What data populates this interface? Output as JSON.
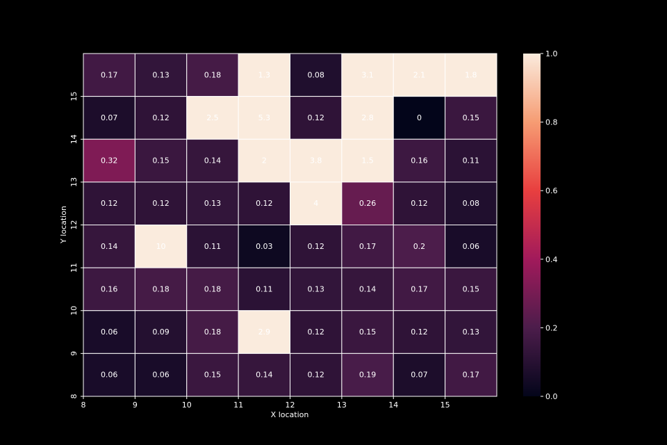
{
  "chart_data": {
    "type": "heatmap",
    "xlabel": "X location",
    "ylabel": "Y location",
    "x_ticks": [
      "8",
      "9",
      "10",
      "11",
      "12",
      "13",
      "14",
      "15"
    ],
    "y_ticks": [
      "8",
      "9",
      "10",
      "11",
      "12",
      "13",
      "14",
      "15"
    ],
    "rows": [
      {
        "values": [
          0.17,
          0.13,
          0.18,
          1.3,
          0.08,
          3.1,
          2.1,
          1.8
        ],
        "labels": [
          "0.17",
          "0.13",
          "0.18",
          "1.3",
          "0.08",
          "3.1",
          "2.1",
          "1.8"
        ]
      },
      {
        "values": [
          0.07,
          0.12,
          2.5,
          5.3,
          0.12,
          2.8,
          0,
          0.15
        ],
        "labels": [
          "0.07",
          "0.12",
          "2.5",
          "5.3",
          "0.12",
          "2.8",
          "0",
          "0.15"
        ]
      },
      {
        "values": [
          0.32,
          0.15,
          0.14,
          2,
          3.8,
          1.5,
          0.16,
          0.11
        ],
        "labels": [
          "0.32",
          "0.15",
          "0.14",
          "2",
          "3.8",
          "1.5",
          "0.16",
          "0.11"
        ]
      },
      {
        "values": [
          0.12,
          0.12,
          0.13,
          0.12,
          4,
          0.26,
          0.12,
          0.08
        ],
        "labels": [
          "0.12",
          "0.12",
          "0.13",
          "0.12",
          "4",
          "0.26",
          "0.12",
          "0.08"
        ]
      },
      {
        "values": [
          0.14,
          10,
          0.11,
          0.03,
          0.12,
          0.17,
          0.2,
          0.06
        ],
        "labels": [
          "0.14",
          "10",
          "0.11",
          "0.03",
          "0.12",
          "0.17",
          "0.2",
          "0.06"
        ]
      },
      {
        "values": [
          0.16,
          0.18,
          0.18,
          0.11,
          0.13,
          0.14,
          0.17,
          0.15
        ],
        "labels": [
          "0.16",
          "0.18",
          "0.18",
          "0.11",
          "0.13",
          "0.14",
          "0.17",
          "0.15"
        ]
      },
      {
        "values": [
          0.06,
          0.09,
          0.18,
          2.9,
          0.12,
          0.15,
          0.12,
          0.13
        ],
        "labels": [
          "0.06",
          "0.09",
          "0.18",
          "2.9",
          "0.12",
          "0.15",
          "0.12",
          "0.13"
        ]
      },
      {
        "values": [
          0.06,
          0.06,
          0.15,
          0.14,
          0.12,
          0.19,
          0.07,
          0.17
        ],
        "labels": [
          "0.06",
          "0.06",
          "0.15",
          "0.14",
          "0.12",
          "0.19",
          "0.07",
          "0.17"
        ]
      }
    ],
    "vmin": 0,
    "vmax": 1,
    "colorbar_ticks": [
      "0.0",
      "0.2",
      "0.4",
      "0.6",
      "0.8",
      "1.0"
    ],
    "colormap": "rocket",
    "colormap_stops": [
      "#03051a",
      "#4c1d4b",
      "#a11a5b",
      "#e83f3f",
      "#f69c73",
      "#faebdd"
    ],
    "grid": false,
    "cell_border_color": "#ffffff",
    "background_color": "#000000"
  }
}
